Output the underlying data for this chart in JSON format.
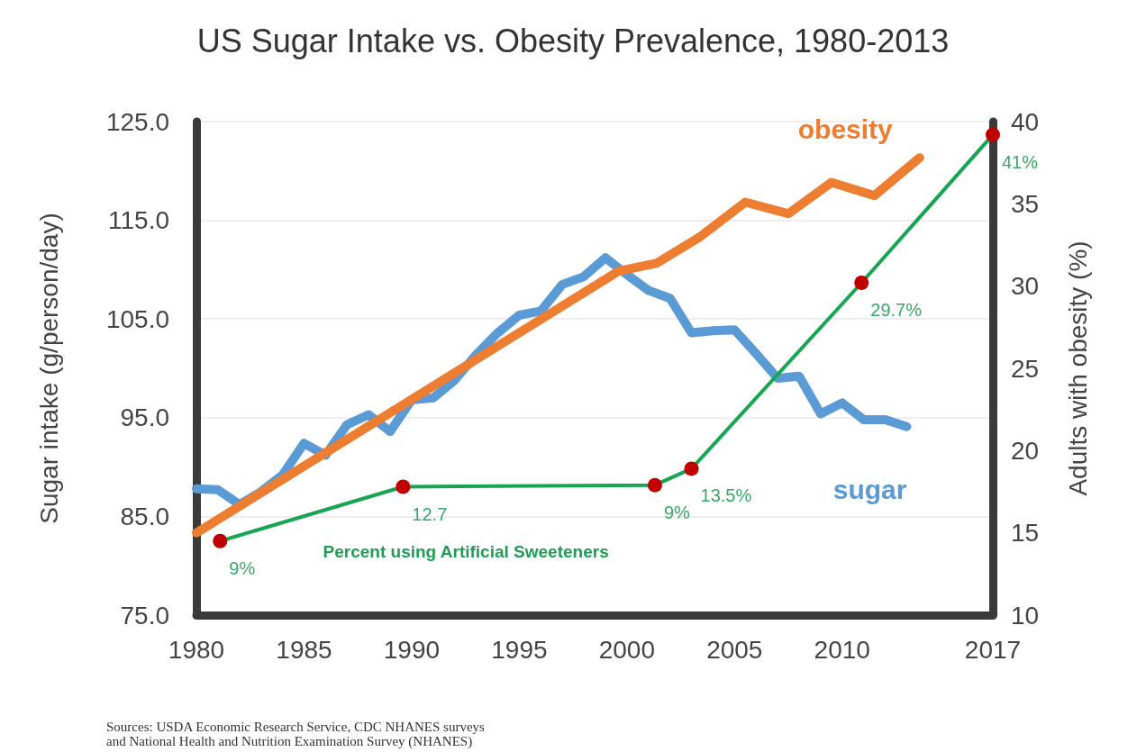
{
  "chart_data": {
    "type": "line",
    "title": "US Sugar Intake vs. Obesity Prevalence, 1980-2013",
    "ylabel": "Sugar intake (g/person/day)",
    "y2label": "Adults with obesity (%)",
    "xlim": [
      1980,
      2017
    ],
    "xticks": [
      1980,
      1985,
      1990,
      1995,
      2000,
      2005,
      2010,
      2017
    ],
    "ylim": [
      75,
      125
    ],
    "yticks": [
      {
        "value": 75,
        "label": "75.0"
      },
      {
        "value": 85,
        "label": "85.0"
      },
      {
        "value": 95,
        "label": "95.0"
      },
      {
        "value": 105,
        "label": "105.0"
      },
      {
        "value": 115,
        "label": "115.0"
      },
      {
        "value": 125,
        "label": "125.0"
      }
    ],
    "y2lim": [
      10,
      40
    ],
    "y2ticks": [
      10,
      15,
      20,
      25,
      30,
      35,
      40
    ],
    "grid": "y",
    "legend": false,
    "line_style": "solid",
    "series": [
      {
        "name": "sugar",
        "color": "#5b9bd5",
        "marker": "none",
        "x": [
          1980,
          1981,
          1982,
          1983,
          1984,
          1985,
          1986,
          1987,
          1988,
          1989,
          1990,
          1991,
          1992,
          1993,
          1994,
          1995,
          1996,
          1997,
          1998,
          1999,
          2000,
          2001,
          2002,
          2003,
          2004,
          2005,
          2006,
          2007,
          2008,
          2009,
          2010,
          2011,
          2012,
          2013
        ],
        "values": [
          87.8,
          87.7,
          86.2,
          87.5,
          89.2,
          92.4,
          91.2,
          94.3,
          95.3,
          93.6,
          96.8,
          97.0,
          98.8,
          101.4,
          103.6,
          105.4,
          105.8,
          108.5,
          109.3,
          111.2,
          109.5,
          107.9,
          107.1,
          103.6,
          103.8,
          103.9,
          101.5,
          99.0,
          99.2,
          95.4,
          96.5,
          94.8,
          94.8,
          94.1
        ]
      },
      {
        "name": "obesity",
        "color": "#ed7d31",
        "marker": "none",
        "axis": "y2",
        "x": [
          1980,
          1999.6,
          2001.4,
          2003.4,
          2005.5,
          2007.5,
          2009.5,
          2011.5,
          2013.6
        ],
        "values": [
          15.0,
          30.9,
          31.4,
          33.0,
          35.1,
          34.4,
          36.3,
          35.5,
          37.8
        ]
      },
      {
        "name": "Percent using Artificial Sweeteners",
        "color": "#17a554",
        "marker": "circle",
        "colors": [
          "#c00000",
          "#c00000",
          "#c00000",
          "#c00000",
          "#c00000",
          "#c00000"
        ],
        "axis": "y2",
        "x": [
          1981.1,
          1989.6,
          2001.3,
          2003.0,
          2010.9,
          2017
        ],
        "values": [
          14.5,
          17.8,
          17.9,
          18.9,
          30.2,
          39.2
        ]
      }
    ],
    "annotations": [
      "9%",
      "12.7",
      "9%",
      "13.5%",
      "29.7%",
      "41%",
      "Sources: USDA Economic Research Service, CDC NHANES surveys\nand National Health and Nutrition Examination Survey (NHANES)"
    ]
  }
}
